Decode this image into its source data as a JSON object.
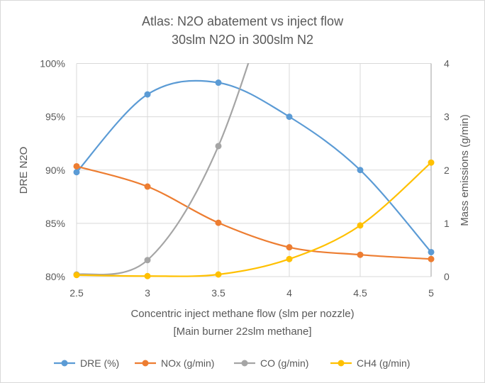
{
  "chart_data": {
    "type": "line",
    "title": "Atlas: N2O abatement vs inject flow",
    "subtitle": "30slm N2O in 300slm N2",
    "xlabel": "Concentric inject methane flow (slm per nozzle)",
    "xlabel2": "[Main burner 22slm methane]",
    "ylabel": "DRE N2O",
    "y2label": "Mass emissions (g/min)",
    "x": [
      2.5,
      3,
      3.5,
      4,
      4.5,
      5
    ],
    "xticks": [
      "2.5",
      "3",
      "3.5",
      "4",
      "4.5",
      "5"
    ],
    "ylim": [
      80,
      100
    ],
    "yticks": [
      "80%",
      "85%",
      "90%",
      "95%",
      "100%"
    ],
    "y2lim": [
      0,
      4
    ],
    "y2ticks": [
      "0",
      "1",
      "2",
      "3",
      "4"
    ],
    "grid": true,
    "smooth": true,
    "legend_position": "bottom",
    "series": [
      {
        "name": "DRE (%)",
        "axis": "left",
        "color": "#5b9bd5",
        "values": [
          89.8,
          97.1,
          98.2,
          95.0,
          90.0,
          82.3
        ]
      },
      {
        "name": "NOx (g/min)",
        "axis": "right",
        "color": "#ed7d31",
        "values": [
          2.07,
          1.69,
          1.01,
          0.55,
          0.41,
          0.33
        ]
      },
      {
        "name": "CO (g/min)",
        "axis": "right",
        "color": "#a5a5a5",
        "values": [
          0.04,
          0.31,
          2.45,
          null,
          null,
          null
        ]
      },
      {
        "name": "CH4 (g/min)",
        "axis": "right",
        "color": "#ffc000",
        "values": [
          0.03,
          0.01,
          0.04,
          0.33,
          0.96,
          2.14
        ]
      }
    ]
  }
}
